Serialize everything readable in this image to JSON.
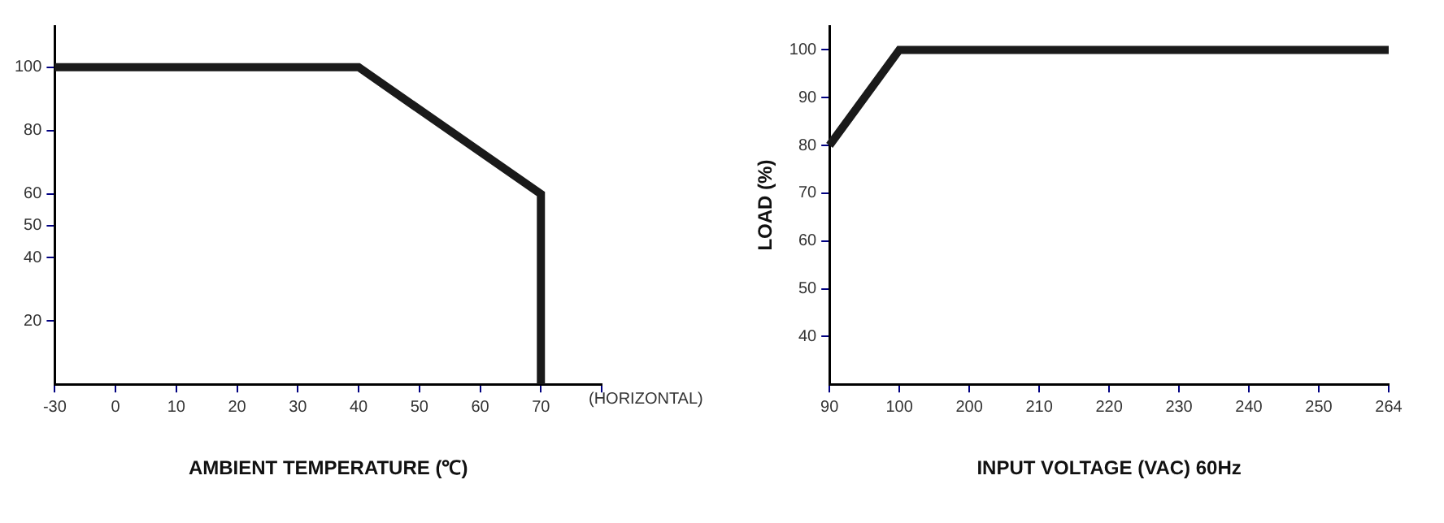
{
  "chart_data": [
    {
      "type": "line",
      "xlabel": "AMBIENT TEMPERATURE (℃)",
      "categories": [
        "-30",
        "0",
        "10",
        "20",
        "30",
        "40",
        "50",
        "60",
        "70",
        null
      ],
      "series": [
        {
          "color": "#1a1a1a",
          "x": [
            "-30",
            "40",
            "70",
            "70"
          ],
          "values": [
            100,
            100,
            60,
            0
          ]
        }
      ],
      "ylim": [
        0,
        113
      ],
      "yticks": [
        20,
        40,
        50,
        60,
        80,
        100
      ],
      "grid": false,
      "annotations": [
        "(HORIZONTAL)"
      ]
    },
    {
      "type": "line",
      "xlabel": "INPUT VOLTAGE (VAC) 60Hz",
      "ylabel": "LOAD (%)",
      "categories": [
        "90",
        "100",
        "200",
        "210",
        "220",
        "230",
        "240",
        "250",
        "264"
      ],
      "series": [
        {
          "color": "#1a1a1a",
          "values": [
            80,
            100,
            100,
            100,
            100,
            100,
            100,
            100,
            100
          ]
        }
      ],
      "ylim": [
        30,
        105
      ],
      "yticks": [
        40,
        50,
        60,
        70,
        80,
        90,
        100
      ],
      "grid": false
    }
  ]
}
